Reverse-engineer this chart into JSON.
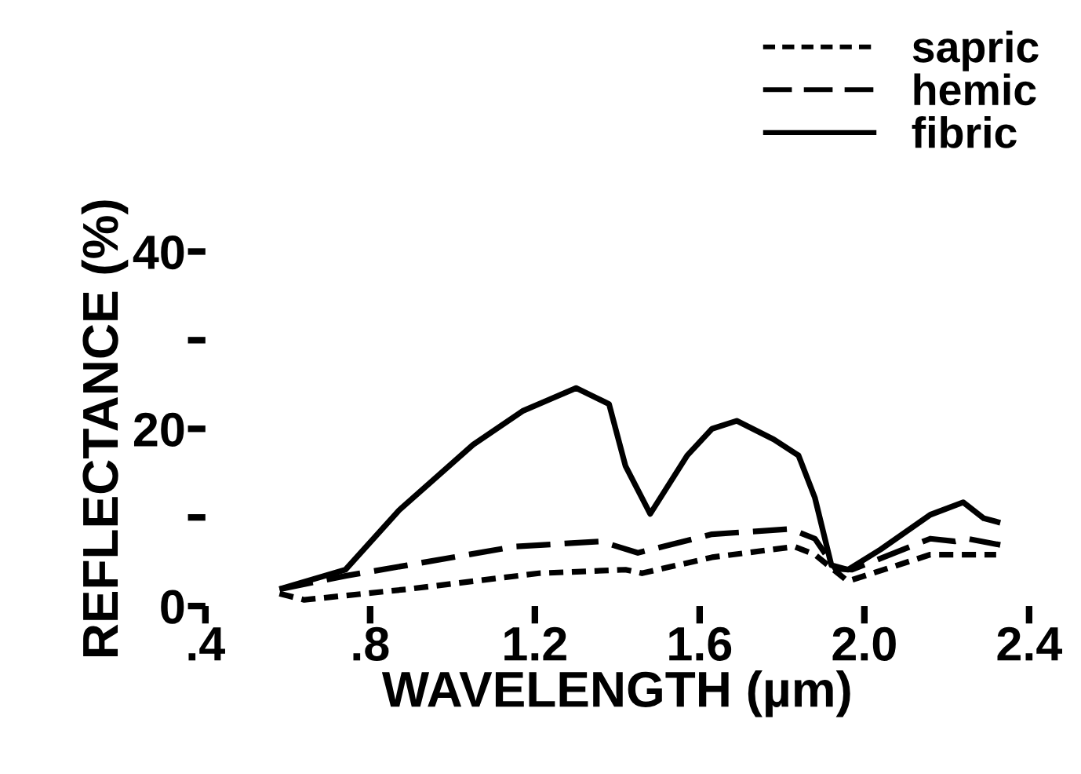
{
  "chart_data": {
    "type": "line",
    "xlabel": "WAVELENGTH (µm)",
    "ylabel": "REFLECTANCE (%)",
    "xlim": [
      0.4,
      2.4
    ],
    "ylim": [
      0,
      40
    ],
    "xticks": [
      {
        "value": 0.4,
        "label": ".4"
      },
      {
        "value": 0.8,
        "label": ".8"
      },
      {
        "value": 1.2,
        "label": "1.2"
      },
      {
        "value": 1.6,
        "label": "1.6"
      },
      {
        "value": 2.0,
        "label": "2.0"
      },
      {
        "value": 2.4,
        "label": "2.4"
      }
    ],
    "yticks": [
      0,
      {
        "value": 10,
        "label": null
      },
      20,
      {
        "value": 30,
        "label": null
      },
      40
    ],
    "grid": false,
    "legend": "top right",
    "marker": "none",
    "series": [
      {
        "name": "sapric",
        "color": "#000000",
        "line_style": "dotted",
        "x": [
          0.58,
          0.64,
          0.89,
          1.21,
          1.42,
          1.46,
          1.63,
          1.83,
          1.88,
          1.96,
          2.16,
          2.32
        ],
        "values": [
          1.4,
          0.7,
          1.9,
          3.7,
          4.1,
          3.7,
          5.5,
          6.7,
          5.8,
          2.8,
          5.8,
          5.8
        ]
      },
      {
        "name": "hemic",
        "color": "#000000",
        "line_style": "dashed",
        "x": [
          0.58,
          0.74,
          0.89,
          1.15,
          1.36,
          1.45,
          1.63,
          1.82,
          1.88,
          1.93,
          1.97,
          2.16,
          2.22,
          2.25,
          2.33
        ],
        "values": [
          1.9,
          3.4,
          4.6,
          6.7,
          7.3,
          6.0,
          8.1,
          8.7,
          7.6,
          4.2,
          4.1,
          7.6,
          7.3,
          7.6,
          6.9
        ]
      },
      {
        "name": "fibric",
        "color": "#000000",
        "line_style": "solid",
        "x": [
          0.58,
          0.74,
          0.87,
          1.05,
          1.17,
          1.3,
          1.38,
          1.42,
          1.48,
          1.57,
          1.63,
          1.69,
          1.78,
          1.84,
          1.88,
          1.92,
          1.96,
          2.04,
          2.16,
          2.24,
          2.29,
          2.33
        ],
        "values": [
          1.9,
          4.1,
          10.8,
          18.2,
          22,
          24.6,
          22.8,
          15.8,
          10.4,
          17,
          20,
          20.9,
          18.8,
          17,
          12.2,
          4.6,
          4.1,
          6.4,
          10.3,
          11.7,
          9.9,
          9.4
        ]
      }
    ]
  }
}
